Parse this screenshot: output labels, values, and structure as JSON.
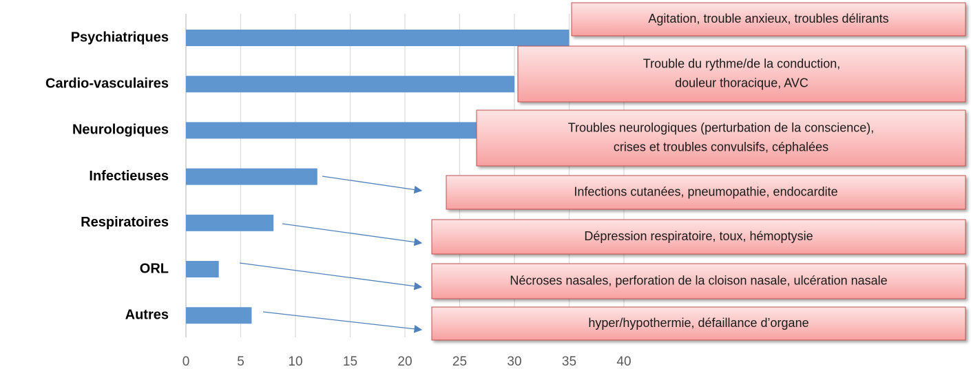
{
  "chart_data": {
    "type": "barh",
    "categories": [
      "Psychiatriques",
      "Cardio-vasculaires",
      "Neurologiques",
      "Infectieuses",
      "Respiratoires",
      "ORL",
      "Autres"
    ],
    "values": [
      35,
      30,
      28,
      12,
      8,
      3,
      6
    ],
    "color": "#6096cf",
    "xlim": [
      0,
      40
    ],
    "xticks": [
      0,
      5,
      10,
      15,
      20,
      25,
      30,
      35,
      40
    ],
    "grid": true,
    "annotations": [
      {
        "lines": [
          "Agitation, trouble anxieux, troubles délirants"
        ]
      },
      {
        "lines": [
          "Trouble du rythme/de la conduction,",
          "douleur thoracique, AVC"
        ]
      },
      {
        "lines": [
          "Troubles neurologiques (perturbation de la conscience),",
          "crises et troubles convulsifs, céphalées"
        ]
      },
      {
        "lines": [
          "Infections cutanées, pneumopathie, endocardite"
        ]
      },
      {
        "lines": [
          "Dépression respiratoire, toux, hémoptysie"
        ]
      },
      {
        "lines": [
          "Nécroses nasales, perforation de la cloison nasale, ulcération nasale"
        ]
      },
      {
        "lines": [
          "hyper/hypothermie, défaillance d’organe"
        ]
      }
    ]
  }
}
